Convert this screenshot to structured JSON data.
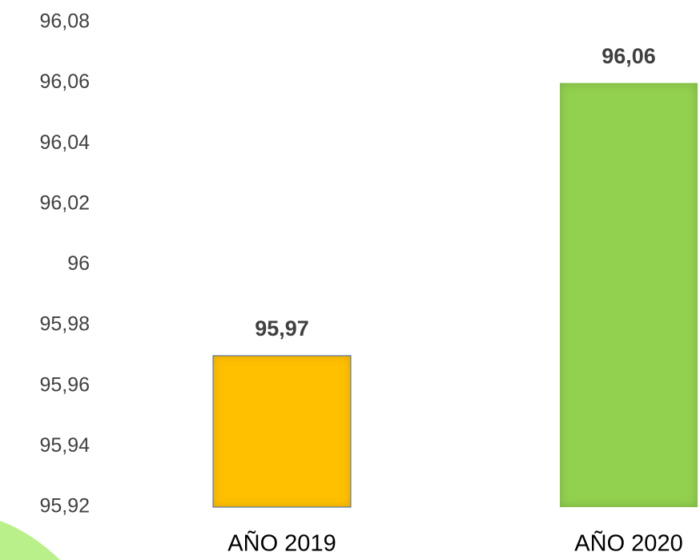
{
  "chart_data": {
    "type": "bar",
    "categories": [
      "AÑO 2019",
      "AÑO 2020"
    ],
    "values": [
      95.97,
      96.06
    ],
    "value_labels": [
      "95,97",
      "96,06"
    ],
    "colors": [
      "#ffc000",
      "#92d050"
    ],
    "ylim": [
      95.92,
      96.08
    ],
    "yticks": [
      {
        "value": 95.92,
        "label": "95,92"
      },
      {
        "value": 95.94,
        "label": "95,94"
      },
      {
        "value": 95.96,
        "label": "95,96"
      },
      {
        "value": 95.98,
        "label": "95,98"
      },
      96,
      {
        "value": 96.02,
        "label": "96,02"
      },
      {
        "value": 96.04,
        "label": "96,04"
      },
      {
        "value": 96.06,
        "label": "96,06"
      },
      {
        "value": 96.08,
        "label": "96,08"
      }
    ],
    "grid": false
  }
}
